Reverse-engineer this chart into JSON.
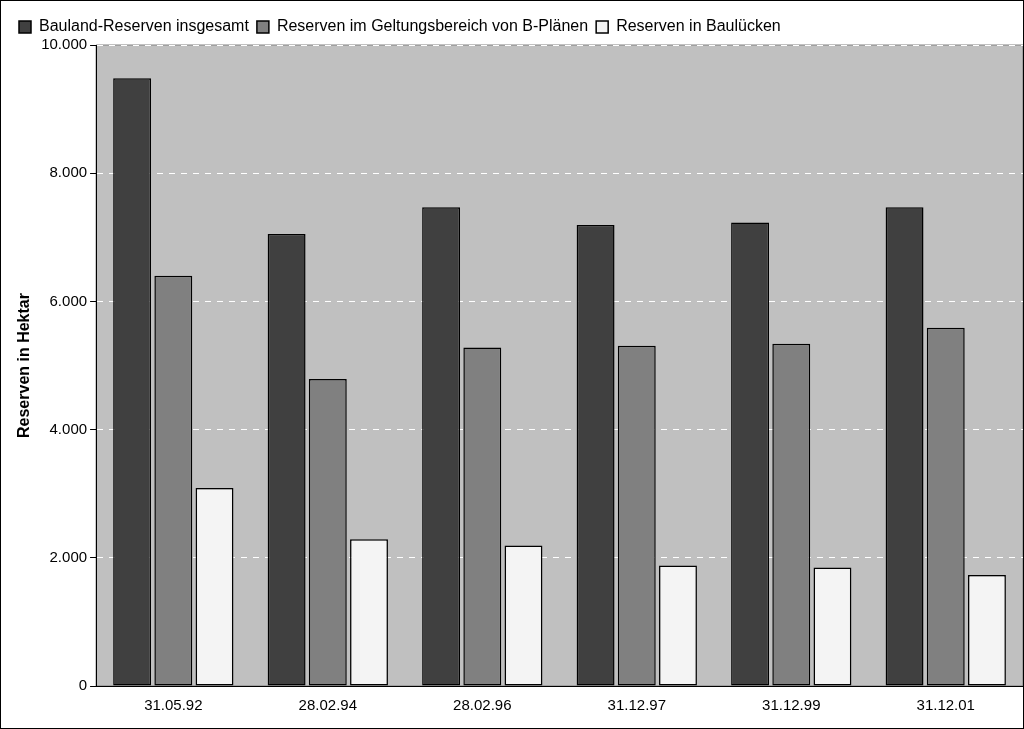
{
  "chart_data": {
    "type": "bar",
    "ylabel": "Reserven in Hektar",
    "categories": [
      "31.05.92",
      "28.02.94",
      "28.02.96",
      "31.12.97",
      "31.12.99",
      "31.12.01"
    ],
    "series": [
      {
        "name": "Bauland-Reserven insgesamt",
        "color": "#404040",
        "values": [
          9480,
          7050,
          7470,
          7190,
          7230,
          7470
        ]
      },
      {
        "name": "Reserven im Geltungsbereich von B-Plänen",
        "color": "#808080",
        "values": [
          6400,
          4790,
          5280,
          5310,
          5340,
          5590
        ]
      },
      {
        "name": "Reserven in Baulücken",
        "color": "#f4f4f4",
        "values": [
          3090,
          2290,
          2190,
          1880,
          1850,
          1730
        ]
      }
    ],
    "ylim": [
      0,
      10000
    ],
    "yticks": [
      {
        "value": 0,
        "label": "0"
      },
      {
        "value": 2000,
        "label": "2.000"
      },
      {
        "value": 4000,
        "label": "4.000"
      },
      {
        "value": 6000,
        "label": "6.000"
      },
      {
        "value": 8000,
        "label": "8.000"
      },
      {
        "value": 10000,
        "label": "10.000"
      }
    ],
    "grid": "y",
    "legend": "top left"
  }
}
